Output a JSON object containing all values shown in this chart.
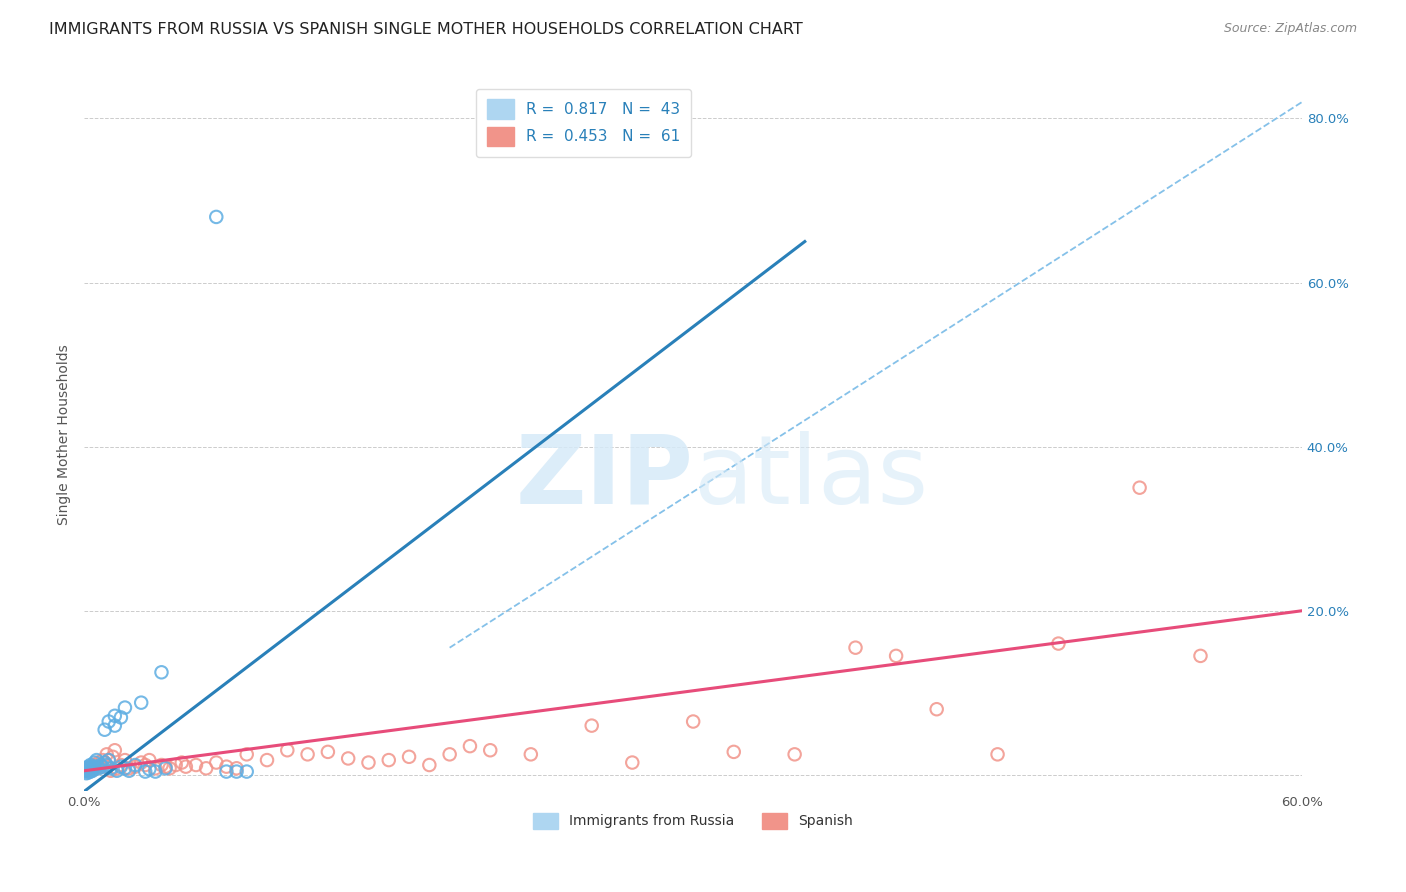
{
  "title": "IMMIGRANTS FROM RUSSIA VS SPANISH SINGLE MOTHER HOUSEHOLDS CORRELATION CHART",
  "source": "Source: ZipAtlas.com",
  "ylabel": "Single Mother Households",
  "xlim": [
    0,
    0.6
  ],
  "ylim": [
    -0.02,
    0.85
  ],
  "plot_ylim": [
    0.0,
    0.85
  ],
  "x_tick_positions": [
    0.0,
    0.1,
    0.2,
    0.3,
    0.4,
    0.5,
    0.6
  ],
  "x_tick_labels": [
    "0.0%",
    "",
    "",
    "",
    "",
    "",
    "60.0%"
  ],
  "y_tick_positions": [
    0.0,
    0.2,
    0.4,
    0.6,
    0.8
  ],
  "y_tick_labels_right": [
    "",
    "20.0%",
    "40.0%",
    "60.0%",
    "80.0%"
  ],
  "background_color": "#ffffff",
  "grid_color": "#cccccc",
  "legend_entries": [
    {
      "label": "R =  0.817   N =  43",
      "color": "#aed6f1"
    },
    {
      "label": "R =  0.453   N =  61",
      "color": "#f1948a"
    }
  ],
  "legend_bottom": [
    {
      "label": "Immigrants from Russia",
      "color": "#aed6f1"
    },
    {
      "label": "Spanish",
      "color": "#f1948a"
    }
  ],
  "russia_scatter": [
    [
      0.001,
      0.002
    ],
    [
      0.001,
      0.005
    ],
    [
      0.001,
      0.008
    ],
    [
      0.002,
      0.003
    ],
    [
      0.002,
      0.006
    ],
    [
      0.002,
      0.01
    ],
    [
      0.003,
      0.004
    ],
    [
      0.003,
      0.008
    ],
    [
      0.003,
      0.012
    ],
    [
      0.004,
      0.005
    ],
    [
      0.004,
      0.01
    ],
    [
      0.005,
      0.008
    ],
    [
      0.005,
      0.015
    ],
    [
      0.006,
      0.01
    ],
    [
      0.006,
      0.018
    ],
    [
      0.007,
      0.008
    ],
    [
      0.008,
      0.012
    ],
    [
      0.009,
      0.01
    ],
    [
      0.01,
      0.015
    ],
    [
      0.01,
      0.055
    ],
    [
      0.011,
      0.012
    ],
    [
      0.012,
      0.018
    ],
    [
      0.012,
      0.065
    ],
    [
      0.013,
      0.008
    ],
    [
      0.015,
      0.06
    ],
    [
      0.015,
      0.072
    ],
    [
      0.016,
      0.005
    ],
    [
      0.018,
      0.01
    ],
    [
      0.018,
      0.07
    ],
    [
      0.02,
      0.008
    ],
    [
      0.02,
      0.082
    ],
    [
      0.022,
      0.005
    ],
    [
      0.025,
      0.012
    ],
    [
      0.028,
      0.088
    ],
    [
      0.03,
      0.004
    ],
    [
      0.032,
      0.007
    ],
    [
      0.035,
      0.004
    ],
    [
      0.038,
      0.125
    ],
    [
      0.04,
      0.008
    ],
    [
      0.065,
      0.68
    ],
    [
      0.07,
      0.004
    ],
    [
      0.075,
      0.004
    ],
    [
      0.08,
      0.004
    ]
  ],
  "spanish_scatter": [
    [
      0.001,
      0.005
    ],
    [
      0.002,
      0.008
    ],
    [
      0.003,
      0.01
    ],
    [
      0.004,
      0.006
    ],
    [
      0.005,
      0.012
    ],
    [
      0.006,
      0.008
    ],
    [
      0.007,
      0.015
    ],
    [
      0.008,
      0.01
    ],
    [
      0.009,
      0.018
    ],
    [
      0.01,
      0.015
    ],
    [
      0.011,
      0.025
    ],
    [
      0.012,
      0.018
    ],
    [
      0.013,
      0.005
    ],
    [
      0.014,
      0.022
    ],
    [
      0.015,
      0.03
    ],
    [
      0.016,
      0.008
    ],
    [
      0.018,
      0.012
    ],
    [
      0.02,
      0.018
    ],
    [
      0.022,
      0.008
    ],
    [
      0.025,
      0.01
    ],
    [
      0.028,
      0.015
    ],
    [
      0.03,
      0.012
    ],
    [
      0.032,
      0.018
    ],
    [
      0.035,
      0.008
    ],
    [
      0.038,
      0.012
    ],
    [
      0.04,
      0.01
    ],
    [
      0.042,
      0.008
    ],
    [
      0.045,
      0.012
    ],
    [
      0.048,
      0.015
    ],
    [
      0.05,
      0.01
    ],
    [
      0.055,
      0.012
    ],
    [
      0.06,
      0.008
    ],
    [
      0.065,
      0.015
    ],
    [
      0.07,
      0.01
    ],
    [
      0.075,
      0.008
    ],
    [
      0.08,
      0.025
    ],
    [
      0.09,
      0.018
    ],
    [
      0.1,
      0.03
    ],
    [
      0.11,
      0.025
    ],
    [
      0.12,
      0.028
    ],
    [
      0.13,
      0.02
    ],
    [
      0.14,
      0.015
    ],
    [
      0.15,
      0.018
    ],
    [
      0.16,
      0.022
    ],
    [
      0.17,
      0.012
    ],
    [
      0.18,
      0.025
    ],
    [
      0.19,
      0.035
    ],
    [
      0.2,
      0.03
    ],
    [
      0.22,
      0.025
    ],
    [
      0.25,
      0.06
    ],
    [
      0.27,
      0.015
    ],
    [
      0.3,
      0.065
    ],
    [
      0.32,
      0.028
    ],
    [
      0.35,
      0.025
    ],
    [
      0.38,
      0.155
    ],
    [
      0.4,
      0.145
    ],
    [
      0.42,
      0.08
    ],
    [
      0.45,
      0.025
    ],
    [
      0.48,
      0.16
    ],
    [
      0.52,
      0.35
    ],
    [
      0.55,
      0.145
    ]
  ],
  "russia_line": {
    "x0": 0.0,
    "y0": -0.02,
    "x1": 0.355,
    "y1": 0.65
  },
  "spanish_line": {
    "x0": 0.0,
    "y0": 0.005,
    "x1": 0.6,
    "y1": 0.2
  },
  "diag_line": {
    "x0": 0.18,
    "y0": 0.155,
    "x1": 0.6,
    "y1": 0.82
  },
  "russia_line_color": "#2980b9",
  "spanish_line_color": "#e74c7a",
  "diag_line_color": "#85c1e9",
  "scatter_russia_facecolor": "none",
  "scatter_russia_edgecolor": "#5dade2",
  "scatter_spanish_facecolor": "none",
  "scatter_spanish_edgecolor": "#f1948a",
  "scatter_size": 80,
  "title_fontsize": 11.5,
  "axis_label_fontsize": 10,
  "tick_fontsize": 9.5,
  "legend_fontsize": 11,
  "watermark_zip_color": "#d6eaf8",
  "watermark_atlas_color": "#d6eaf8"
}
